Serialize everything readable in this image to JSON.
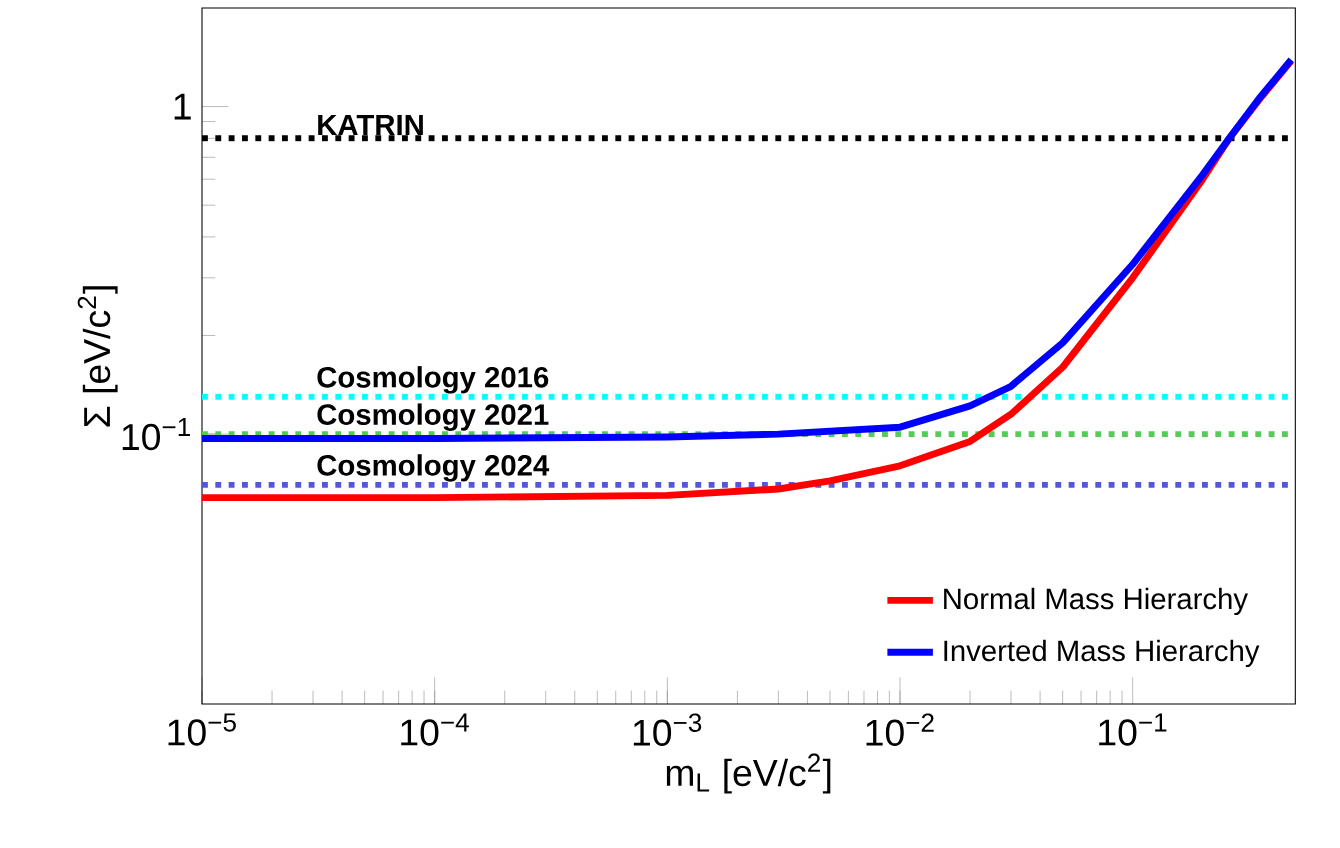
{
  "chart_data": {
    "type": "line",
    "xlabel": "m$_{L}$ [eV/c$^{2}$]",
    "ylabel": "Σ [eV/c$^{2}$]",
    "log": "xy",
    "xlim": [
      1e-05,
      0.5
    ],
    "ylim": [
      0.015,
      2
    ],
    "xticks": [
      {
        "value": 1e-05,
        "label": "10$^{−5}$"
      },
      {
        "value": 0.0001,
        "label": "10$^{−4}$"
      },
      {
        "value": 0.001,
        "label": "10$^{−3}$"
      },
      {
        "value": 0.01,
        "label": "10$^{−2}$"
      },
      {
        "value": 0.1,
        "label": "10$^{−1}$"
      }
    ],
    "yticks": [
      {
        "value": 0.1,
        "label": "10$^{−1}$"
      },
      1
    ],
    "grid": false,
    "legend": "bottom right",
    "marker": "none",
    "line_style": "solid",
    "series": [
      {
        "name": "Normal Mass Hierarchy",
        "color": "#ff0000",
        "x": [
          1e-05,
          0.0001,
          0.001,
          0.003,
          0.005,
          0.01,
          0.02,
          0.03,
          0.05,
          0.1,
          0.2,
          0.26,
          0.35,
          0.48
        ],
        "values": [
          0.064,
          0.064,
          0.065,
          0.068,
          0.072,
          0.08,
          0.095,
          0.115,
          0.16,
          0.3,
          0.6,
          0.8,
          1.05,
          1.38
        ]
      },
      {
        "name": "Inverted Mass Hierarchy",
        "color": "#0000ff",
        "x": [
          1e-05,
          0.0001,
          0.001,
          0.003,
          0.01,
          0.02,
          0.03,
          0.05,
          0.1,
          0.2,
          0.26,
          0.35,
          0.48
        ],
        "values": [
          0.097,
          0.097,
          0.098,
          0.1,
          0.105,
          0.122,
          0.14,
          0.19,
          0.33,
          0.62,
          0.8,
          1.06,
          1.39
        ]
      }
    ],
    "ref_lines": [
      {
        "axis": "y",
        "value": 0.8,
        "label": "KATRIN",
        "color": "#000000",
        "line_style": "dotted"
      },
      {
        "axis": "y",
        "value": 0.13,
        "label": "Cosmology 2016",
        "color": "#00ffff",
        "line_style": "dotted"
      },
      {
        "axis": "y",
        "value": 0.1,
        "label": "Cosmology 2021",
        "color": "#55cc55",
        "line_style": "dotted"
      },
      {
        "axis": "y",
        "value": 0.07,
        "label": "Cosmology 2024",
        "color": "#5555dd",
        "line_style": "dotted"
      }
    ]
  }
}
